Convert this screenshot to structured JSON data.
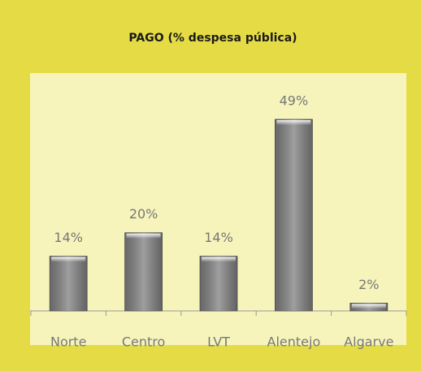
{
  "chart_data": {
    "type": "bar",
    "title": "PAGO  (% despesa pública)",
    "categories": [
      "Norte",
      "Centro",
      "LVT",
      "Alentejo",
      "Algarve"
    ],
    "values": [
      14,
      20,
      14,
      49,
      2
    ],
    "value_labels": [
      "14%",
      "20%",
      "14%",
      "49%",
      "2%"
    ],
    "color": "#7f7f7f"
  }
}
